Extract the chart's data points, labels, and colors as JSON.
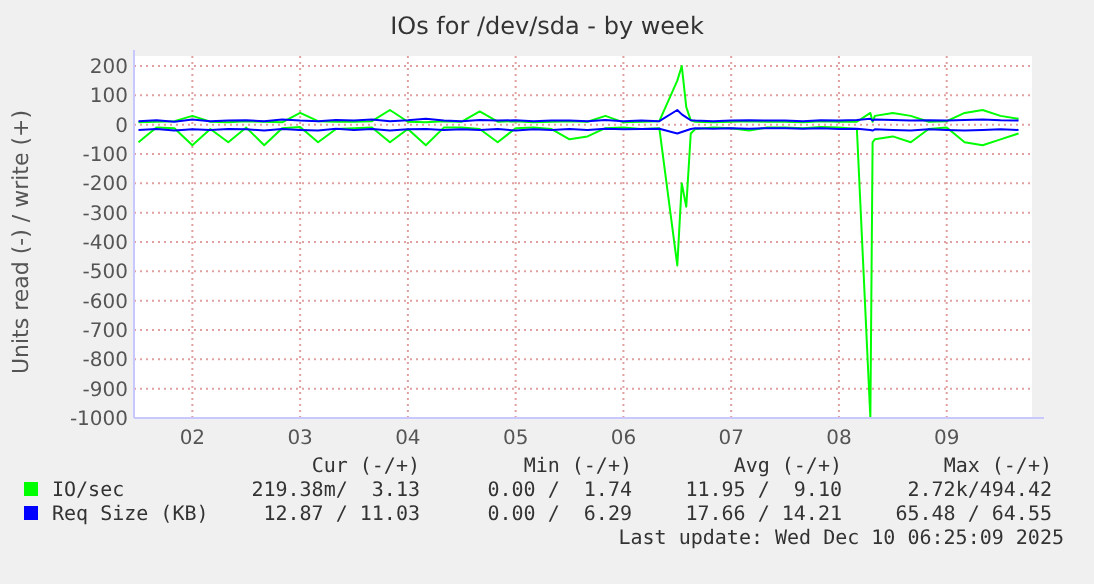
{
  "chart_data": {
    "type": "line",
    "title": "IOs for /dev/sda - by week",
    "ylabel": "Units read (-) / write (+)",
    "x": [
      "2025-12-02T00:00",
      "2025-12-02T04:00",
      "2025-12-02T08:00",
      "2025-12-02T12:00",
      "2025-12-02T16:00",
      "2025-12-02T20:00",
      "2025-12-03T00:00",
      "2025-12-03T04:00",
      "2025-12-03T08:00",
      "2025-12-03T12:00",
      "2025-12-03T16:00",
      "2025-12-03T20:00",
      "2025-12-04T00:00",
      "2025-12-04T04:00",
      "2025-12-04T08:00",
      "2025-12-04T12:00",
      "2025-12-04T16:00",
      "2025-12-04T20:00",
      "2025-12-05T00:00",
      "2025-12-05T04:00",
      "2025-12-05T08:00",
      "2025-12-05T12:00",
      "2025-12-05T16:00",
      "2025-12-05T20:00",
      "2025-12-06T00:00",
      "2025-12-06T04:00",
      "2025-12-06T08:00",
      "2025-12-06T12:00",
      "2025-12-06T16:00",
      "2025-12-06T20:00",
      "2025-12-07T00:00",
      "2025-12-07T01:00",
      "2025-12-07T02:00",
      "2025-12-07T03:00",
      "2025-12-07T04:00",
      "2025-12-07T08:00",
      "2025-12-07T12:00",
      "2025-12-07T16:00",
      "2025-12-07T20:00",
      "2025-12-08T00:00",
      "2025-12-08T04:00",
      "2025-12-08T08:00",
      "2025-12-08T12:00",
      "2025-12-08T16:00",
      "2025-12-08T19:00",
      "2025-12-08T19:30",
      "2025-12-08T20:00",
      "2025-12-09T00:00",
      "2025-12-09T04:00",
      "2025-12-09T08:00",
      "2025-12-09T12:00",
      "2025-12-09T16:00",
      "2025-12-09T20:00",
      "2025-12-10T00:00",
      "2025-12-10T04:00"
    ],
    "series": [
      {
        "name": "IO/sec",
        "color": "#00ff00",
        "values": [
          8,
          10,
          12,
          30,
          10,
          8,
          12,
          10,
          8,
          40,
          12,
          10,
          10,
          12,
          50,
          10,
          8,
          12,
          10,
          45,
          10,
          12,
          8,
          10,
          12,
          10,
          30,
          8,
          10,
          12,
          150,
          200,
          60,
          15,
          10,
          8,
          10,
          12,
          10,
          10,
          8,
          12,
          10,
          10,
          40,
          10,
          30,
          40,
          30,
          10,
          12,
          40,
          50,
          30,
          20
        ]
      },
      {
        "color": "#00ff00",
        "values": [
          -60,
          -10,
          -12,
          -70,
          -15,
          -60,
          -10,
          -70,
          -12,
          -8,
          -60,
          -15,
          -12,
          -10,
          -60,
          -15,
          -70,
          -10,
          -10,
          -15,
          -60,
          -12,
          -10,
          -15,
          -50,
          -40,
          -12,
          -10,
          -15,
          -12,
          -480,
          -200,
          -280,
          -30,
          -15,
          -10,
          -12,
          -20,
          -10,
          -10,
          -12,
          -8,
          -10,
          -15,
          -1000,
          -60,
          -50,
          -40,
          -60,
          -15,
          -10,
          -60,
          -70,
          -50,
          -30
        ]
      },
      {
        "name": "Req Size (KB)",
        "color": "#0000ff",
        "values": [
          12,
          15,
          10,
          18,
          12,
          14,
          15,
          12,
          18,
          14,
          12,
          16,
          14,
          18,
          12,
          15,
          20,
          14,
          12,
          16,
          14,
          15,
          12,
          14,
          14,
          12,
          16,
          12,
          14,
          12,
          50,
          35,
          25,
          15,
          14,
          12,
          14,
          15,
          14,
          14,
          12,
          15,
          14,
          16,
          20,
          14,
          18,
          16,
          14,
          15,
          14,
          16,
          18,
          15,
          14
        ]
      },
      {
        "color": "#0000ff",
        "values": [
          -18,
          -15,
          -20,
          -16,
          -18,
          -15,
          -16,
          -20,
          -15,
          -18,
          -20,
          -14,
          -18,
          -15,
          -20,
          -16,
          -15,
          -18,
          -16,
          -18,
          -15,
          -20,
          -16,
          -18,
          -15,
          -18,
          -14,
          -16,
          -15,
          -14,
          -30,
          -25,
          -20,
          -15,
          -12,
          -14,
          -12,
          -14,
          -12,
          -12,
          -14,
          -12,
          -15,
          -14,
          -18,
          -20,
          -16,
          -18,
          -20,
          -16,
          -18,
          -20,
          -18,
          -16,
          -18
        ]
      }
    ],
    "xlim": [
      "2025-12-01T23:00",
      "2025-12-10T07:00"
    ],
    "xticks": [
      {
        "value": "2025-12-02T12:00",
        "label": "02"
      },
      {
        "value": "2025-12-03T12:00",
        "label": "03"
      },
      {
        "value": "2025-12-04T12:00",
        "label": "04"
      },
      {
        "value": "2025-12-05T12:00",
        "label": "05"
      },
      {
        "value": "2025-12-06T12:00",
        "label": "06"
      },
      {
        "value": "2025-12-07T12:00",
        "label": "07"
      },
      {
        "value": "2025-12-08T12:00",
        "label": "08"
      },
      {
        "value": "2025-12-09T12:00",
        "label": "09"
      }
    ],
    "ylim": [
      -1000,
      200
    ],
    "yticks": [
      -1000,
      -900,
      -800,
      -700,
      -600,
      -500,
      -400,
      -300,
      -200,
      -100,
      0,
      100,
      200
    ],
    "grid": true,
    "legend": "bottom left",
    "marker": "none",
    "line_style": "solid",
    "annotations": [
      "Cur (-/+)",
      "Min (-/+)",
      "Avg (-/+)",
      "Max (-/+)",
      "219.38m/  3.13",
      "0.00 /  1.74",
      "11.95 /  9.10",
      "2.72k/494.42",
      "12.87 / 11.03",
      "0.00 /  6.29",
      "17.66 / 14.21",
      "65.48 / 64.55",
      "Last update: Wed Dec 10 06:25:09 2025"
    ]
  }
}
